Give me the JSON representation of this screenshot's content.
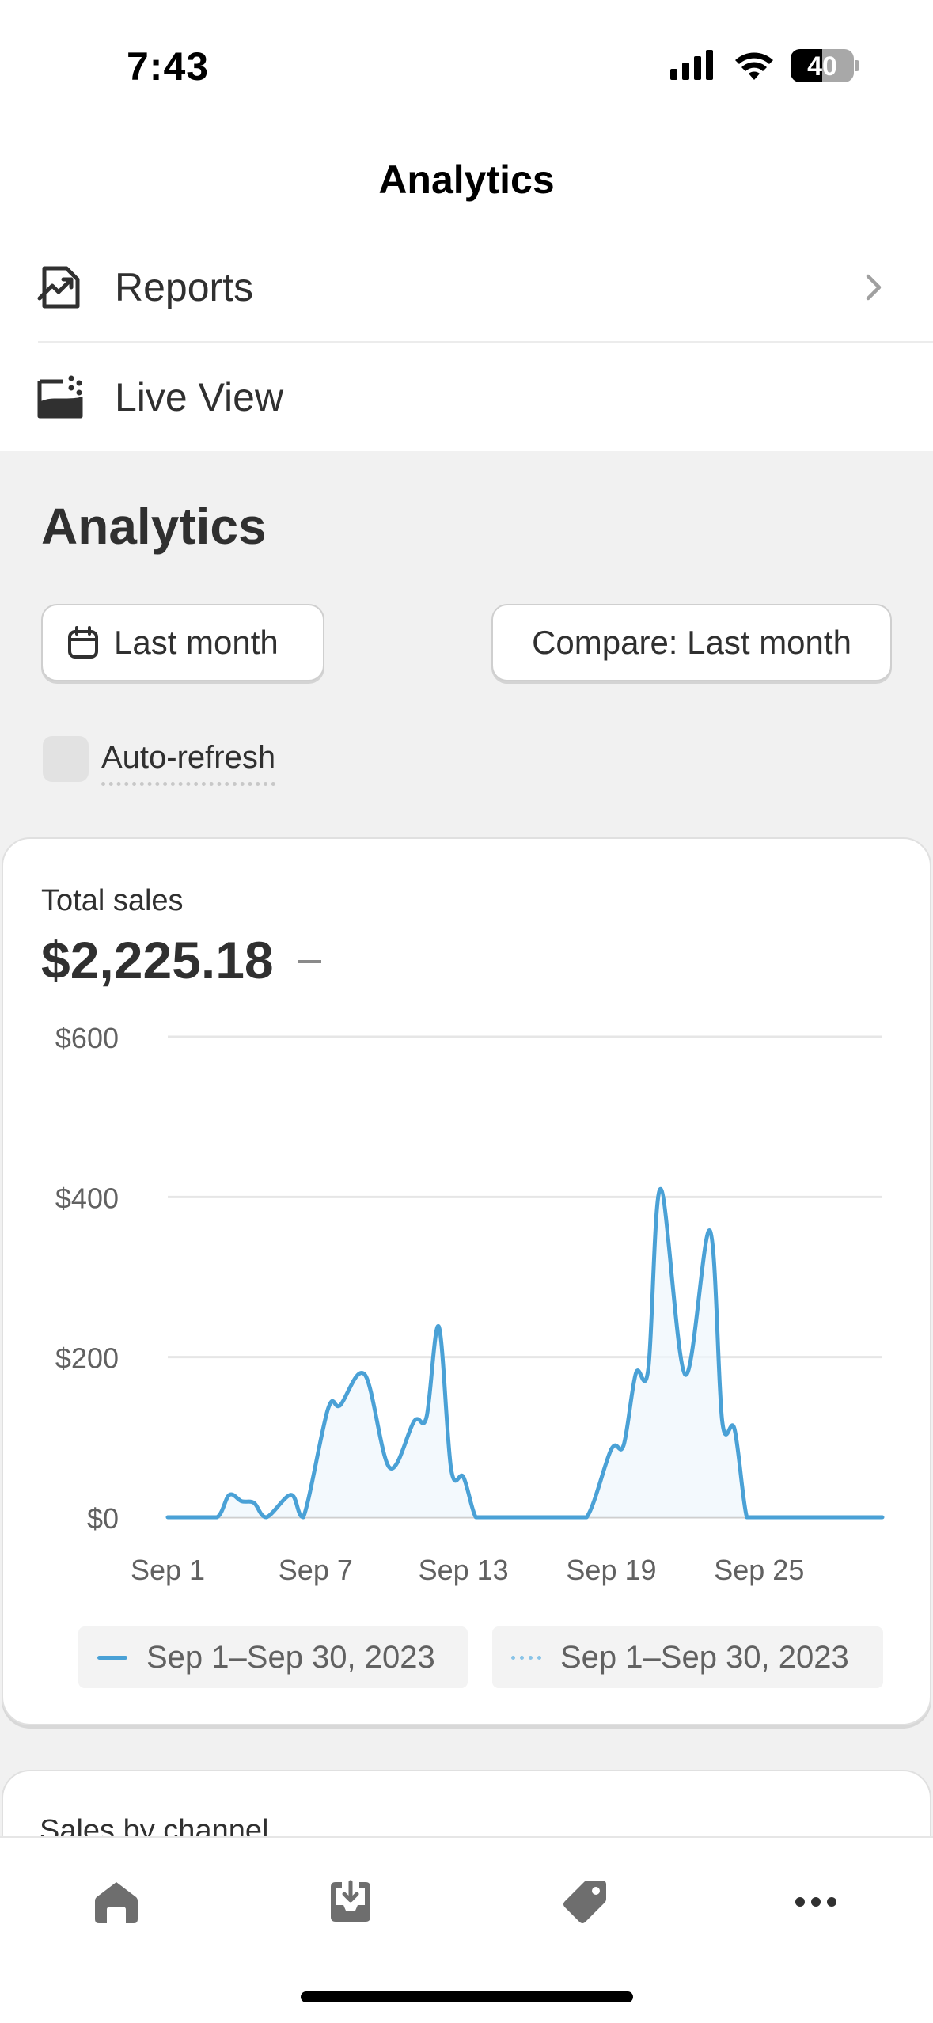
{
  "status_bar": {
    "time": "7:43",
    "battery": "40",
    "icons": [
      "signal-icon",
      "wifi-icon",
      "battery-icon"
    ]
  },
  "nav": {
    "title": "Analytics"
  },
  "menu": {
    "items": [
      {
        "label": "Reports",
        "icon": "reports-icon",
        "chevron": true
      },
      {
        "label": "Live View",
        "icon": "live-view-icon",
        "chevron": false
      }
    ]
  },
  "page": {
    "title": "Analytics",
    "date_filter": "Last month",
    "compare_filter": "Compare: Last month",
    "auto_refresh": {
      "label": "Auto-refresh",
      "checked": false
    }
  },
  "total_sales_card": {
    "label": "Total sales",
    "value": "$2,225.18",
    "trend": "–"
  },
  "chart_data": {
    "type": "area",
    "title": "Total sales",
    "y_tick_labels": [
      "$600",
      "$400",
      "$200",
      "$0"
    ],
    "y_ticks": [
      600,
      400,
      200,
      0
    ],
    "ylim": [
      0,
      600
    ],
    "x_tick_labels": [
      "Sep 1",
      "Sep 7",
      "Sep 13",
      "Sep 19",
      "Sep 25"
    ],
    "x_tick_days": [
      1,
      7,
      13,
      19,
      25
    ],
    "xlim": [
      1,
      30
    ],
    "grid": true,
    "legend_placement": "bottom",
    "series": [
      {
        "name": "Sep 1–Sep 30, 2023",
        "color": "#4aa1d6",
        "style": "solid",
        "points": [
          [
            1,
            0
          ],
          [
            2,
            0
          ],
          [
            3,
            0
          ],
          [
            3.5,
            28
          ],
          [
            4,
            20
          ],
          [
            4.5,
            18
          ],
          [
            5,
            0
          ],
          [
            6,
            28
          ],
          [
            6.5,
            0
          ],
          [
            7.5,
            135
          ],
          [
            8,
            140
          ],
          [
            9,
            178
          ],
          [
            10,
            62
          ],
          [
            11,
            120
          ],
          [
            11.5,
            125
          ],
          [
            12,
            238
          ],
          [
            12.5,
            60
          ],
          [
            13,
            50
          ],
          [
            13.5,
            0
          ],
          [
            14,
            0
          ],
          [
            15,
            0
          ],
          [
            16,
            0
          ],
          [
            17,
            0
          ],
          [
            18,
            0
          ],
          [
            19,
            85
          ],
          [
            19.5,
            90
          ],
          [
            20,
            180
          ],
          [
            20.5,
            185
          ],
          [
            21,
            410
          ],
          [
            22,
            178
          ],
          [
            23,
            358
          ],
          [
            23.5,
            120
          ],
          [
            24,
            110
          ],
          [
            24.5,
            0
          ],
          [
            25,
            0
          ],
          [
            26,
            0
          ],
          [
            27,
            0
          ],
          [
            28,
            0
          ],
          [
            29,
            0
          ],
          [
            30,
            0
          ]
        ]
      },
      {
        "name": "Sep 1–Sep 30, 2023",
        "color": "#89c4e8",
        "style": "dotted",
        "points": []
      }
    ]
  },
  "second_card": {
    "label": "Sales by channel"
  },
  "tabbar": {
    "tabs": [
      {
        "icon": "home-icon"
      },
      {
        "icon": "orders-icon"
      },
      {
        "icon": "products-tag-icon"
      },
      {
        "icon": "more-icon"
      }
    ]
  }
}
